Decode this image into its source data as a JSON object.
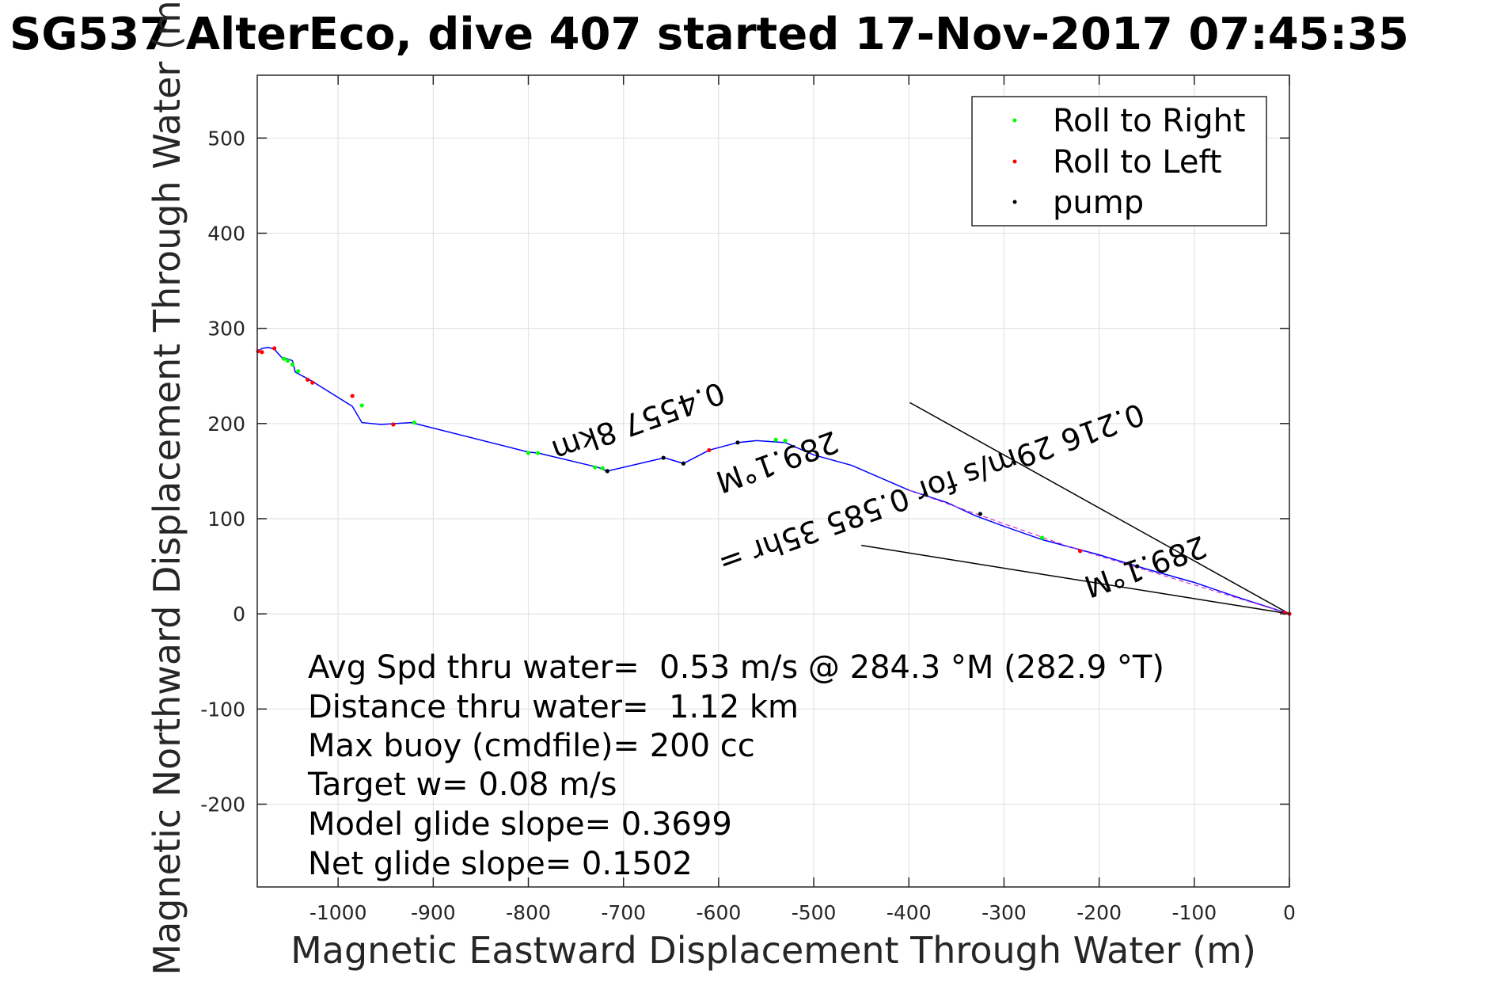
{
  "chart_data": {
    "type": "line",
    "title": "SG537 AlterEco, dive 407 started 17-Nov-2017 07:45:35",
    "xlabel": "Magnetic Eastward Displacement Through Water (m)",
    "ylabel": "Magnetic Northward Displacement Through Water (m)",
    "xlim": [
      -1085,
      0
    ],
    "ylim": [
      -287,
      566
    ],
    "xticks": [
      -1000,
      -900,
      -800,
      -700,
      -600,
      -500,
      -400,
      -300,
      -200,
      -100,
      0
    ],
    "yticks": [
      -200,
      -100,
      0,
      100,
      200,
      300,
      400,
      500
    ],
    "xtick_labels": [
      "-1000",
      "-900",
      "-800",
      "-700",
      "-600",
      "-500",
      "-400",
      "-300",
      "-200",
      "-100",
      "0"
    ],
    "ytick_labels": [
      "-200",
      "-100",
      "0",
      "100",
      "200",
      "300",
      "400",
      "500"
    ],
    "grid": true,
    "legend": {
      "placement": "top-right",
      "entries": [
        {
          "label": "Roll to Right",
          "color": "#00ff00",
          "marker": "dot"
        },
        {
          "label": "Roll to Left",
          "color": "#ff0000",
          "marker": "dot"
        },
        {
          "label": "pump",
          "color": "#000000",
          "marker": "dot"
        }
      ]
    },
    "series": [
      {
        "name": "track",
        "color": "#0000ff",
        "x": [
          0,
          -50,
          -100,
          -150,
          -200,
          -230,
          -260,
          -300,
          -330,
          -360,
          -400,
          -430,
          -460,
          -500,
          -530,
          -560,
          -580,
          -610,
          -637,
          -657,
          -717,
          -727,
          -790,
          -800,
          -923,
          -955,
          -975,
          -985,
          -1025,
          -1030,
          -1045,
          -1047,
          -1048,
          -1053,
          -1058,
          -1067,
          -1073,
          -1080,
          -1085
        ],
        "y": [
          0,
          16,
          33,
          47,
          62,
          70,
          78,
          92,
          103,
          117,
          130,
          143,
          156,
          167,
          180,
          182,
          180,
          172,
          158,
          164,
          150,
          154,
          169,
          170,
          201,
          199,
          201,
          218,
          243,
          246,
          254,
          262,
          266,
          268,
          268,
          278,
          280,
          279,
          275
        ]
      },
      {
        "name": "Roll to Right",
        "color": "#00ff00",
        "x": [
          -1042,
          -1048,
          -1053,
          -1057,
          -975,
          -920,
          -800,
          -790,
          -730,
          -722,
          -540,
          -530,
          -260
        ],
        "y": [
          255,
          262,
          266,
          268,
          219,
          201,
          169,
          169,
          154,
          153,
          183,
          182,
          80
        ]
      },
      {
        "name": "Roll to Left",
        "color": "#ff0000",
        "x": [
          -1080,
          -1084,
          -1067,
          -1027,
          -1032,
          -985,
          -942,
          -610,
          -220,
          -5,
          0
        ],
        "y": [
          275,
          276,
          279,
          243,
          246,
          229,
          199,
          172,
          66,
          1,
          0
        ]
      },
      {
        "name": "pump",
        "color": "#000000",
        "x": [
          -717,
          -658,
          -637,
          -580,
          -325,
          -160
        ],
        "y": [
          150,
          164,
          158,
          180,
          105,
          50
        ]
      }
    ],
    "annotation_lines": [
      {
        "x": [
          0,
          -399
        ],
        "y": [
          0,
          222
        ]
      },
      {
        "x": [
          0,
          -450
        ],
        "y": [
          0,
          72
        ]
      }
    ],
    "rotated_labels": [
      {
        "text": "0.4557 8km",
        "x": -688,
        "y": 212,
        "angle_deg": -19.7
      },
      {
        "text": "289.1°M",
        "x": -542,
        "y": 170,
        "angle_deg": -19.7
      },
      {
        "text": "0.216 29m/s for 0.585 35hr =",
        "x": -380,
        "y": 142,
        "angle_deg": -19.7
      },
      {
        "text": "289.1°M",
        "x": -155,
        "y": 60,
        "angle_deg": -19.7
      }
    ],
    "stats": [
      "Avg Spd thru water=  0.53 m/s @ 284.3 °M (282.9 °T)",
      "Distance thru water=  1.12 km",
      "Max buoy (cmdfile)= 200 cc",
      "Target w= 0.08 m/s",
      "Model glide slope= 0.3699",
      "Net glide slope= 0.1502"
    ]
  }
}
